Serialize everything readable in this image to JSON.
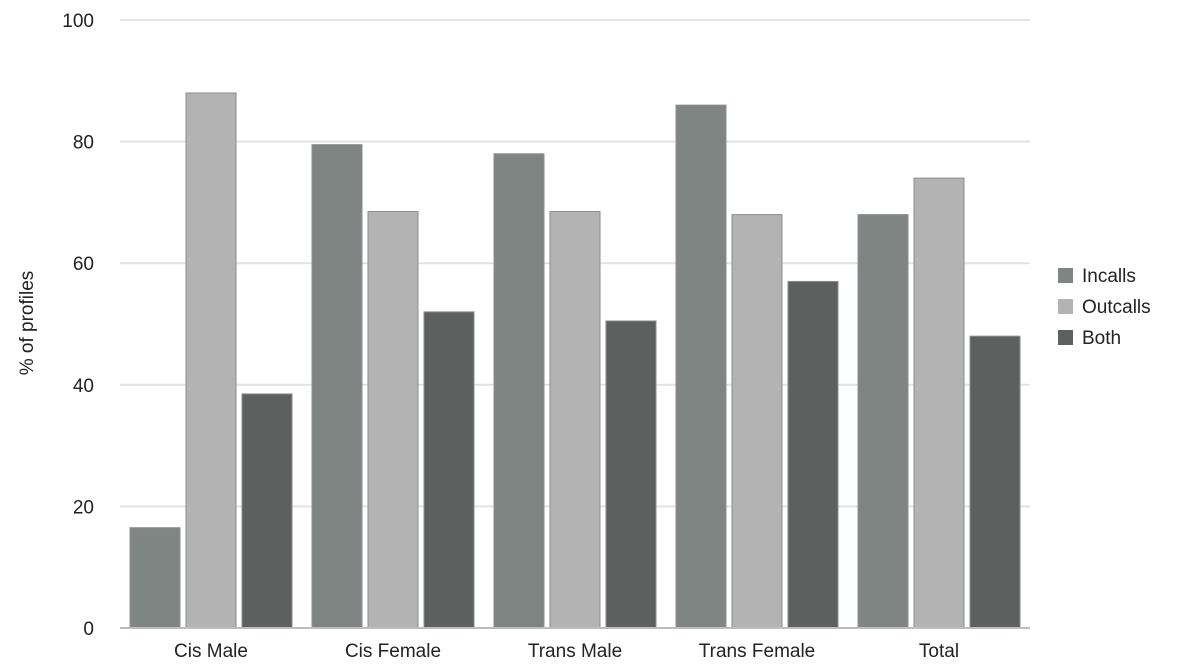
{
  "chart_data": {
    "type": "bar",
    "title": "",
    "xlabel": "",
    "ylabel": "% of profiles",
    "ylim": [
      0,
      100
    ],
    "yticks": [
      0,
      20,
      40,
      60,
      80,
      100
    ],
    "grid": true,
    "legend_position": "right",
    "categories": [
      "Cis Male",
      "Cis Female",
      "Trans Male",
      "Trans Female",
      "Total"
    ],
    "series": [
      {
        "name": "Incalls",
        "color": "#7f8583",
        "values": [
          16.5,
          79.5,
          78,
          86,
          68
        ]
      },
      {
        "name": "Outcalls",
        "color": "#b3b3b3",
        "values": [
          88,
          68.5,
          68.5,
          68,
          74
        ]
      },
      {
        "name": "Both",
        "color": "#5c605e",
        "values": [
          38.5,
          52,
          50.5,
          57,
          48
        ]
      }
    ]
  }
}
